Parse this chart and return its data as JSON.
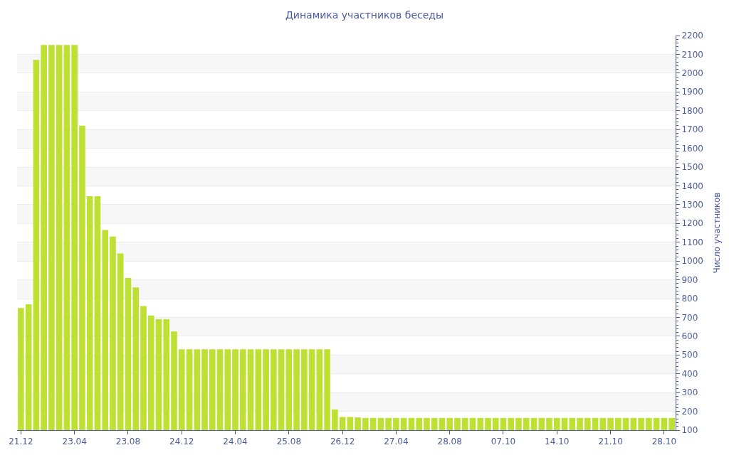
{
  "chart_data": {
    "type": "bar",
    "title": "Динамика участников беседы",
    "ylabel": "Число участников",
    "categories": [
      "21.12",
      null,
      null,
      null,
      null,
      null,
      null,
      "23.04",
      null,
      null,
      null,
      null,
      null,
      null,
      "23.08",
      null,
      null,
      null,
      null,
      null,
      null,
      "24.12",
      null,
      null,
      null,
      null,
      null,
      null,
      "24.04",
      null,
      null,
      null,
      null,
      null,
      null,
      "25.08",
      null,
      null,
      null,
      null,
      null,
      null,
      "26.12",
      null,
      null,
      null,
      null,
      null,
      null,
      "27.04",
      null,
      null,
      null,
      null,
      null,
      null,
      "28.08",
      null,
      null,
      null,
      null,
      null,
      null,
      "07.10",
      null,
      null,
      null,
      null,
      null,
      null,
      "14.10",
      null,
      null,
      null,
      null,
      null,
      null,
      "21.10",
      null,
      null,
      null,
      null,
      null,
      null,
      "28.10",
      null
    ],
    "values": [
      750,
      770,
      2070,
      2150,
      2150,
      2150,
      2150,
      2150,
      1720,
      1345,
      1345,
      1165,
      1130,
      1040,
      910,
      860,
      760,
      710,
      690,
      690,
      625,
      530,
      530,
      530,
      530,
      530,
      530,
      530,
      530,
      530,
      530,
      530,
      530,
      530,
      530,
      530,
      530,
      530,
      530,
      530,
      530,
      210,
      170,
      170,
      168,
      165,
      165,
      165,
      165,
      165,
      165,
      165,
      165,
      165,
      165,
      165,
      165,
      165,
      165,
      165,
      165,
      165,
      165,
      165,
      165,
      165,
      165,
      165,
      165,
      165,
      165,
      165,
      165,
      165,
      165,
      165,
      165,
      165,
      165,
      165,
      165,
      165,
      165,
      165,
      165,
      165
    ],
    "color": "#bee032",
    "ylim": [
      100,
      2200
    ],
    "yticks": [
      100,
      200,
      300,
      400,
      500,
      600,
      700,
      800,
      900,
      1000,
      1100,
      1200,
      1300,
      1400,
      1500,
      1600,
      1700,
      1800,
      1900,
      2000,
      2100,
      2200
    ],
    "grid": "y"
  }
}
